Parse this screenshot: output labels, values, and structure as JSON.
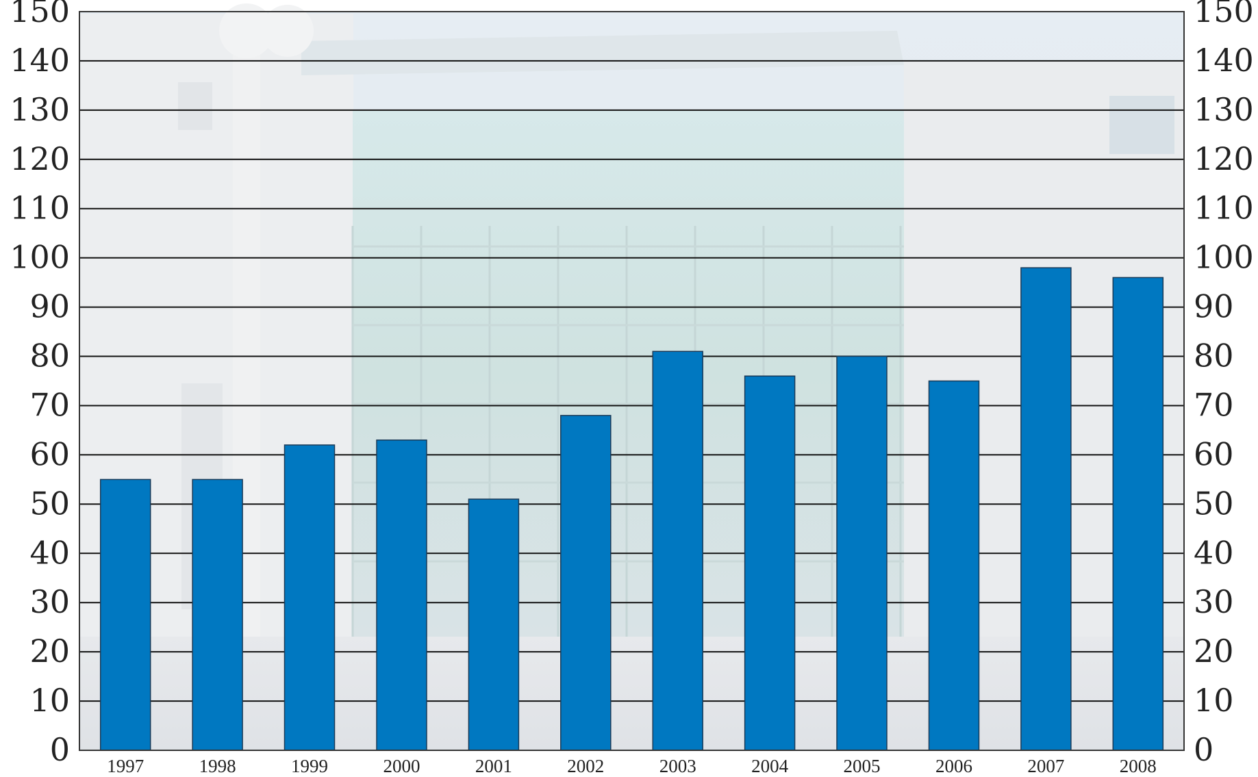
{
  "chart_data": {
    "type": "bar",
    "title": "",
    "xlabel": "",
    "ylabel": "",
    "categories": [
      "1997",
      "1998",
      "1999",
      "2000",
      "2001",
      "2002",
      "2003",
      "2004",
      "2005",
      "2006",
      "2007",
      "2008"
    ],
    "values": [
      55,
      55,
      62,
      63,
      51,
      68,
      81,
      76,
      80,
      75,
      98,
      96
    ],
    "ylim": [
      0,
      150
    ],
    "yticks": [
      "0",
      "10",
      "20",
      "30",
      "40",
      "50",
      "60",
      "70",
      "80",
      "90",
      "100",
      "110",
      "120",
      "130",
      "140",
      "150"
    ],
    "secondary_y_axis": "right, mirrors left",
    "grid": true,
    "legend": "none",
    "background": "faded photograph of a building with a glass facade",
    "colors": {
      "bar": "#0078c1",
      "bar_edge": "#1b3a57",
      "grid": "#111111"
    }
  }
}
